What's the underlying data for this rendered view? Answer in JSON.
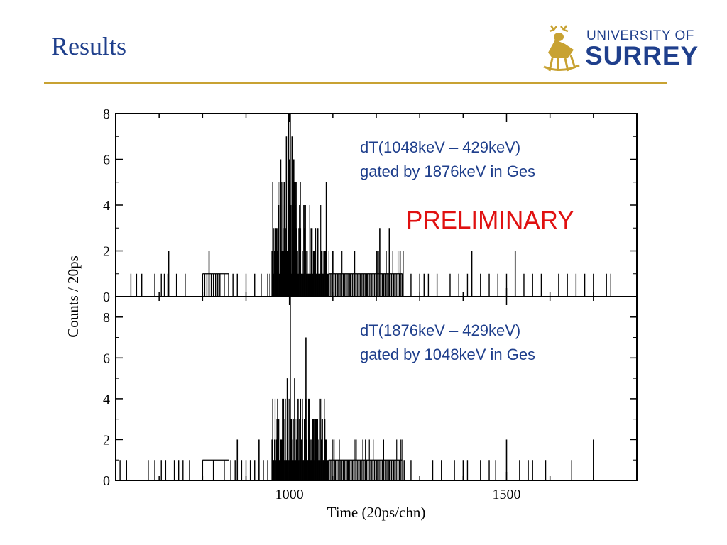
{
  "slide": {
    "title": "Results",
    "logo_line1": "UNIVERSITY OF",
    "logo_line2": "SURREY",
    "accent_color": "#c8a232",
    "title_color": "#1f3f8c"
  },
  "chart_data": [
    {
      "type": "histogram",
      "panel": "top",
      "annotation_line1": "dT(1048keV – 429keV)",
      "annotation_line2": "gated by 1876keV in Ges",
      "stamp": "PRELIMINARY",
      "stamp_color": "#e01010",
      "annotation_color": "#1f3f8c",
      "xlim": [
        600,
        1800
      ],
      "ylim": [
        0,
        8
      ],
      "y_ticks": [
        "0",
        "2",
        "4",
        "6",
        "8"
      ],
      "peaks": [
        {
          "x": 998,
          "y": 8
        },
        {
          "x": 1002,
          "y": 8
        },
        {
          "x": 993,
          "y": 7
        },
        {
          "x": 1006,
          "y": 7
        },
        {
          "x": 980,
          "y": 6
        },
        {
          "x": 1000,
          "y": 6
        },
        {
          "x": 1010,
          "y": 6
        },
        {
          "x": 988,
          "y": 5
        },
        {
          "x": 1015,
          "y": 5
        },
        {
          "x": 1025,
          "y": 5
        },
        {
          "x": 1035,
          "y": 4
        },
        {
          "x": 1050,
          "y": 3
        },
        {
          "x": 1060,
          "y": 3
        },
        {
          "x": 1075,
          "y": 2
        },
        {
          "x": 1100,
          "y": 2
        },
        {
          "x": 1150,
          "y": 2
        },
        {
          "x": 1208,
          "y": 3
        },
        {
          "x": 1230,
          "y": 3
        },
        {
          "x": 1255,
          "y": 2
        },
        {
          "x": 1200,
          "y": 2
        },
        {
          "x": 722,
          "y": 2
        },
        {
          "x": 815,
          "y": 2
        },
        {
          "x": 1420,
          "y": 2
        },
        {
          "x": 1520,
          "y": 2
        },
        {
          "x": 960,
          "y": 2
        },
        {
          "x": 970,
          "y": 3
        }
      ],
      "ones": [
        635,
        648,
        660,
        690,
        705,
        712,
        720,
        740,
        760,
        800,
        805,
        810,
        815,
        820,
        825,
        830,
        835,
        840,
        850,
        860,
        870,
        880,
        900,
        920,
        935,
        950,
        955,
        960,
        1090,
        1110,
        1130,
        1140,
        1160,
        1170,
        1180,
        1190,
        1220,
        1240,
        1260,
        1280,
        1300,
        1310,
        1320,
        1340,
        1370,
        1390,
        1410,
        1440,
        1460,
        1480,
        1500,
        1520,
        1540,
        1560,
        1580,
        1620,
        1640,
        1660,
        1680,
        1700,
        1730,
        1740
      ]
    },
    {
      "type": "histogram",
      "panel": "bottom",
      "annotation_line1": "dT(1876keV – 429keV)",
      "annotation_line2": "gated by 1048keV in Ges",
      "annotation_color": "#1f3f8c",
      "xlim": [
        600,
        1800
      ],
      "ylim": [
        0,
        9
      ],
      "x_ticks": [
        "1000",
        "1500"
      ],
      "y_ticks": [
        "0",
        "2",
        "4",
        "6",
        "8"
      ],
      "xlabel": "Time (20ps/chn)",
      "ylabel": "Counts / 20ps",
      "peaks": [
        {
          "x": 1002,
          "y": 9
        },
        {
          "x": 1038,
          "y": 7
        },
        {
          "x": 1012,
          "y": 5
        },
        {
          "x": 995,
          "y": 5
        },
        {
          "x": 985,
          "y": 4
        },
        {
          "x": 1020,
          "y": 4
        },
        {
          "x": 1045,
          "y": 4
        },
        {
          "x": 1030,
          "y": 3
        },
        {
          "x": 975,
          "y": 3
        },
        {
          "x": 1055,
          "y": 3
        },
        {
          "x": 1065,
          "y": 2
        },
        {
          "x": 880,
          "y": 2
        },
        {
          "x": 930,
          "y": 2
        },
        {
          "x": 960,
          "y": 2
        },
        {
          "x": 1080,
          "y": 1
        },
        {
          "x": 1500,
          "y": 2
        },
        {
          "x": 1700,
          "y": 2
        }
      ],
      "ones": [
        610,
        625,
        675,
        690,
        705,
        715,
        735,
        745,
        755,
        770,
        800,
        825,
        850,
        865,
        875,
        890,
        900,
        910,
        920,
        940,
        950,
        1090,
        1105,
        1115,
        1125,
        1135,
        1145,
        1160,
        1175,
        1190,
        1200,
        1215,
        1230,
        1240,
        1255,
        1265,
        1280,
        1330,
        1350,
        1380,
        1400,
        1410,
        1440,
        1460,
        1475,
        1530,
        1550,
        1560,
        1590,
        1650
      ]
    }
  ]
}
